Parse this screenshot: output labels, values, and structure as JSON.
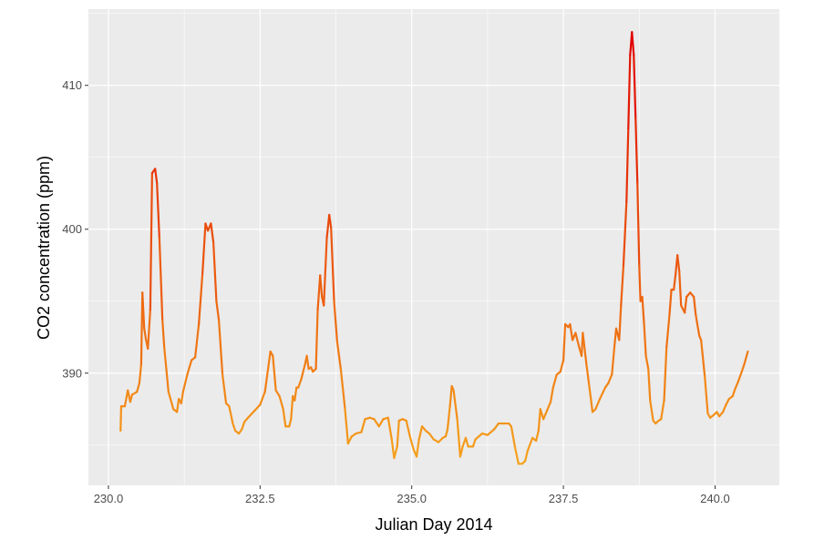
{
  "chart_data": {
    "type": "line",
    "title": "",
    "xlabel": "Julian Day 2014",
    "ylabel": "CO2 concentration (ppm)",
    "xlim": [
      229.67,
      241.06
    ],
    "ylim": [
      382.2,
      415.3
    ],
    "x_ticks": [
      230.0,
      232.5,
      235.0,
      237.5,
      240.0
    ],
    "x_tick_labels": [
      "230.0",
      "232.5",
      "235.0",
      "237.5",
      "240.0"
    ],
    "y_ticks": [
      390,
      400,
      410
    ],
    "y_tick_labels": [
      "390",
      "400",
      "410"
    ],
    "grid": true,
    "legend": "none",
    "color_scale": {
      "low": "#F5A31C",
      "high": "#E00000",
      "variable": "CO2 concentration"
    },
    "panel_background": "#EBEBEB",
    "series": [
      {
        "name": "CO2",
        "points": [
          [
            230.2,
            386.0
          ],
          [
            230.21,
            387.7
          ],
          [
            230.27,
            387.7
          ],
          [
            230.32,
            388.8
          ],
          [
            230.36,
            388.0
          ],
          [
            230.39,
            388.5
          ],
          [
            230.47,
            388.7
          ],
          [
            230.51,
            389.3
          ],
          [
            230.54,
            390.6
          ],
          [
            230.56,
            395.6
          ],
          [
            230.59,
            393.1
          ],
          [
            230.62,
            392.3
          ],
          [
            230.65,
            391.7
          ],
          [
            230.69,
            394.4
          ],
          [
            230.72,
            403.9
          ],
          [
            230.77,
            404.2
          ],
          [
            230.8,
            403.2
          ],
          [
            230.84,
            399.4
          ],
          [
            230.89,
            393.7
          ],
          [
            230.92,
            391.8
          ],
          [
            230.99,
            388.7
          ],
          [
            231.07,
            387.5
          ],
          [
            231.13,
            387.3
          ],
          [
            231.16,
            388.2
          ],
          [
            231.2,
            387.9
          ],
          [
            231.23,
            388.7
          ],
          [
            231.3,
            389.9
          ],
          [
            231.37,
            390.9
          ],
          [
            231.43,
            391.1
          ],
          [
            231.49,
            393.4
          ],
          [
            231.55,
            396.9
          ],
          [
            231.6,
            400.4
          ],
          [
            231.64,
            399.9
          ],
          [
            231.69,
            400.4
          ],
          [
            231.73,
            399.1
          ],
          [
            231.78,
            395.0
          ],
          [
            231.82,
            393.7
          ],
          [
            231.88,
            389.9
          ],
          [
            231.94,
            387.9
          ],
          [
            231.99,
            387.7
          ],
          [
            232.05,
            386.5
          ],
          [
            232.09,
            386.0
          ],
          [
            232.15,
            385.8
          ],
          [
            232.2,
            386.1
          ],
          [
            232.24,
            386.6
          ],
          [
            232.3,
            386.9
          ],
          [
            232.39,
            387.3
          ],
          [
            232.5,
            387.8
          ],
          [
            232.58,
            388.7
          ],
          [
            232.67,
            391.5
          ],
          [
            232.71,
            391.2
          ],
          [
            232.76,
            388.8
          ],
          [
            232.82,
            388.4
          ],
          [
            232.88,
            387.5
          ],
          [
            232.92,
            386.3
          ],
          [
            232.98,
            386.3
          ],
          [
            233.01,
            386.8
          ],
          [
            233.04,
            388.4
          ],
          [
            233.07,
            388.1
          ],
          [
            233.1,
            389.0
          ],
          [
            233.13,
            389.0
          ],
          [
            233.18,
            389.6
          ],
          [
            233.24,
            390.6
          ],
          [
            233.27,
            391.2
          ],
          [
            233.3,
            390.3
          ],
          [
            233.34,
            390.4
          ],
          [
            233.37,
            390.1
          ],
          [
            233.42,
            390.3
          ],
          [
            233.45,
            394.4
          ],
          [
            233.49,
            396.8
          ],
          [
            233.52,
            395.3
          ],
          [
            233.55,
            394.7
          ],
          [
            233.6,
            399.4
          ],
          [
            233.64,
            401.0
          ],
          [
            233.67,
            400.1
          ],
          [
            233.72,
            395.0
          ],
          [
            233.77,
            392.2
          ],
          [
            233.83,
            390.3
          ],
          [
            233.9,
            387.5
          ],
          [
            233.95,
            385.1
          ],
          [
            234.01,
            385.6
          ],
          [
            234.08,
            385.8
          ],
          [
            234.17,
            385.9
          ],
          [
            234.23,
            386.8
          ],
          [
            234.31,
            386.9
          ],
          [
            234.38,
            386.8
          ],
          [
            234.46,
            386.3
          ],
          [
            234.53,
            386.8
          ],
          [
            234.61,
            386.9
          ],
          [
            234.67,
            385.4
          ],
          [
            234.71,
            384.1
          ],
          [
            234.76,
            384.9
          ],
          [
            234.79,
            386.7
          ],
          [
            234.85,
            386.8
          ],
          [
            234.91,
            386.7
          ],
          [
            234.97,
            385.6
          ],
          [
            235.03,
            384.7
          ],
          [
            235.08,
            384.2
          ],
          [
            235.12,
            385.4
          ],
          [
            235.17,
            386.3
          ],
          [
            235.23,
            386.0
          ],
          [
            235.29,
            385.8
          ],
          [
            235.36,
            385.4
          ],
          [
            235.44,
            385.2
          ],
          [
            235.51,
            385.5
          ],
          [
            235.56,
            385.6
          ],
          [
            235.59,
            386.1
          ],
          [
            235.63,
            387.7
          ],
          [
            235.66,
            389.1
          ],
          [
            235.69,
            388.8
          ],
          [
            235.75,
            386.8
          ],
          [
            235.8,
            384.2
          ],
          [
            235.84,
            384.9
          ],
          [
            235.89,
            385.5
          ],
          [
            235.93,
            384.9
          ],
          [
            236.01,
            384.9
          ],
          [
            236.05,
            385.4
          ],
          [
            236.16,
            385.8
          ],
          [
            236.25,
            385.7
          ],
          [
            236.36,
            386.1
          ],
          [
            236.43,
            386.5
          ],
          [
            236.52,
            386.5
          ],
          [
            236.6,
            386.5
          ],
          [
            236.64,
            386.3
          ],
          [
            236.7,
            384.9
          ],
          [
            236.76,
            383.7
          ],
          [
            236.82,
            383.7
          ],
          [
            236.87,
            383.9
          ],
          [
            236.91,
            384.6
          ],
          [
            236.99,
            385.5
          ],
          [
            237.05,
            385.3
          ],
          [
            237.09,
            386.0
          ],
          [
            237.12,
            387.5
          ],
          [
            237.17,
            386.8
          ],
          [
            237.23,
            387.4
          ],
          [
            237.29,
            388.0
          ],
          [
            237.33,
            389.0
          ],
          [
            237.39,
            389.9
          ],
          [
            237.45,
            390.1
          ],
          [
            237.5,
            390.9
          ],
          [
            237.53,
            393.4
          ],
          [
            237.58,
            393.2
          ],
          [
            237.61,
            393.4
          ],
          [
            237.65,
            392.3
          ],
          [
            237.7,
            392.8
          ],
          [
            237.76,
            391.8
          ],
          [
            237.8,
            391.2
          ],
          [
            237.82,
            392.8
          ],
          [
            237.88,
            390.6
          ],
          [
            237.92,
            389.3
          ],
          [
            237.98,
            387.3
          ],
          [
            238.03,
            387.5
          ],
          [
            238.1,
            388.2
          ],
          [
            238.19,
            389.0
          ],
          [
            238.24,
            389.3
          ],
          [
            238.3,
            389.9
          ],
          [
            238.34,
            391.8
          ],
          [
            238.37,
            393.1
          ],
          [
            238.42,
            392.3
          ],
          [
            238.45,
            394.7
          ],
          [
            238.49,
            397.5
          ],
          [
            238.54,
            401.9
          ],
          [
            238.57,
            407.0
          ],
          [
            238.6,
            412.1
          ],
          [
            238.63,
            413.7
          ],
          [
            238.66,
            412.1
          ],
          [
            238.69,
            407.7
          ],
          [
            238.72,
            403.2
          ],
          [
            238.75,
            397.5
          ],
          [
            238.77,
            395.0
          ],
          [
            238.8,
            395.3
          ],
          [
            238.83,
            393.4
          ],
          [
            238.86,
            391.2
          ],
          [
            238.9,
            390.3
          ],
          [
            238.93,
            388.1
          ],
          [
            238.98,
            386.7
          ],
          [
            239.02,
            386.5
          ],
          [
            239.07,
            386.7
          ],
          [
            239.11,
            386.8
          ],
          [
            239.16,
            388.1
          ],
          [
            239.2,
            391.8
          ],
          [
            239.25,
            394.1
          ],
          [
            239.28,
            395.8
          ],
          [
            239.32,
            395.8
          ],
          [
            239.35,
            396.9
          ],
          [
            239.38,
            398.2
          ],
          [
            239.41,
            397.1
          ],
          [
            239.44,
            394.7
          ],
          [
            239.5,
            394.2
          ],
          [
            239.53,
            395.3
          ],
          [
            239.59,
            395.6
          ],
          [
            239.65,
            395.3
          ],
          [
            239.68,
            394.1
          ],
          [
            239.74,
            392.6
          ],
          [
            239.77,
            392.3
          ],
          [
            239.83,
            389.8
          ],
          [
            239.88,
            387.2
          ],
          [
            239.92,
            386.9
          ],
          [
            239.98,
            387.1
          ],
          [
            240.03,
            387.3
          ],
          [
            240.07,
            387.0
          ],
          [
            240.13,
            387.3
          ],
          [
            240.18,
            387.8
          ],
          [
            240.23,
            388.2
          ],
          [
            240.29,
            388.4
          ],
          [
            240.33,
            388.9
          ],
          [
            240.38,
            389.4
          ],
          [
            240.44,
            390.1
          ],
          [
            240.48,
            390.6
          ],
          [
            240.54,
            391.5
          ]
        ]
      }
    ]
  }
}
